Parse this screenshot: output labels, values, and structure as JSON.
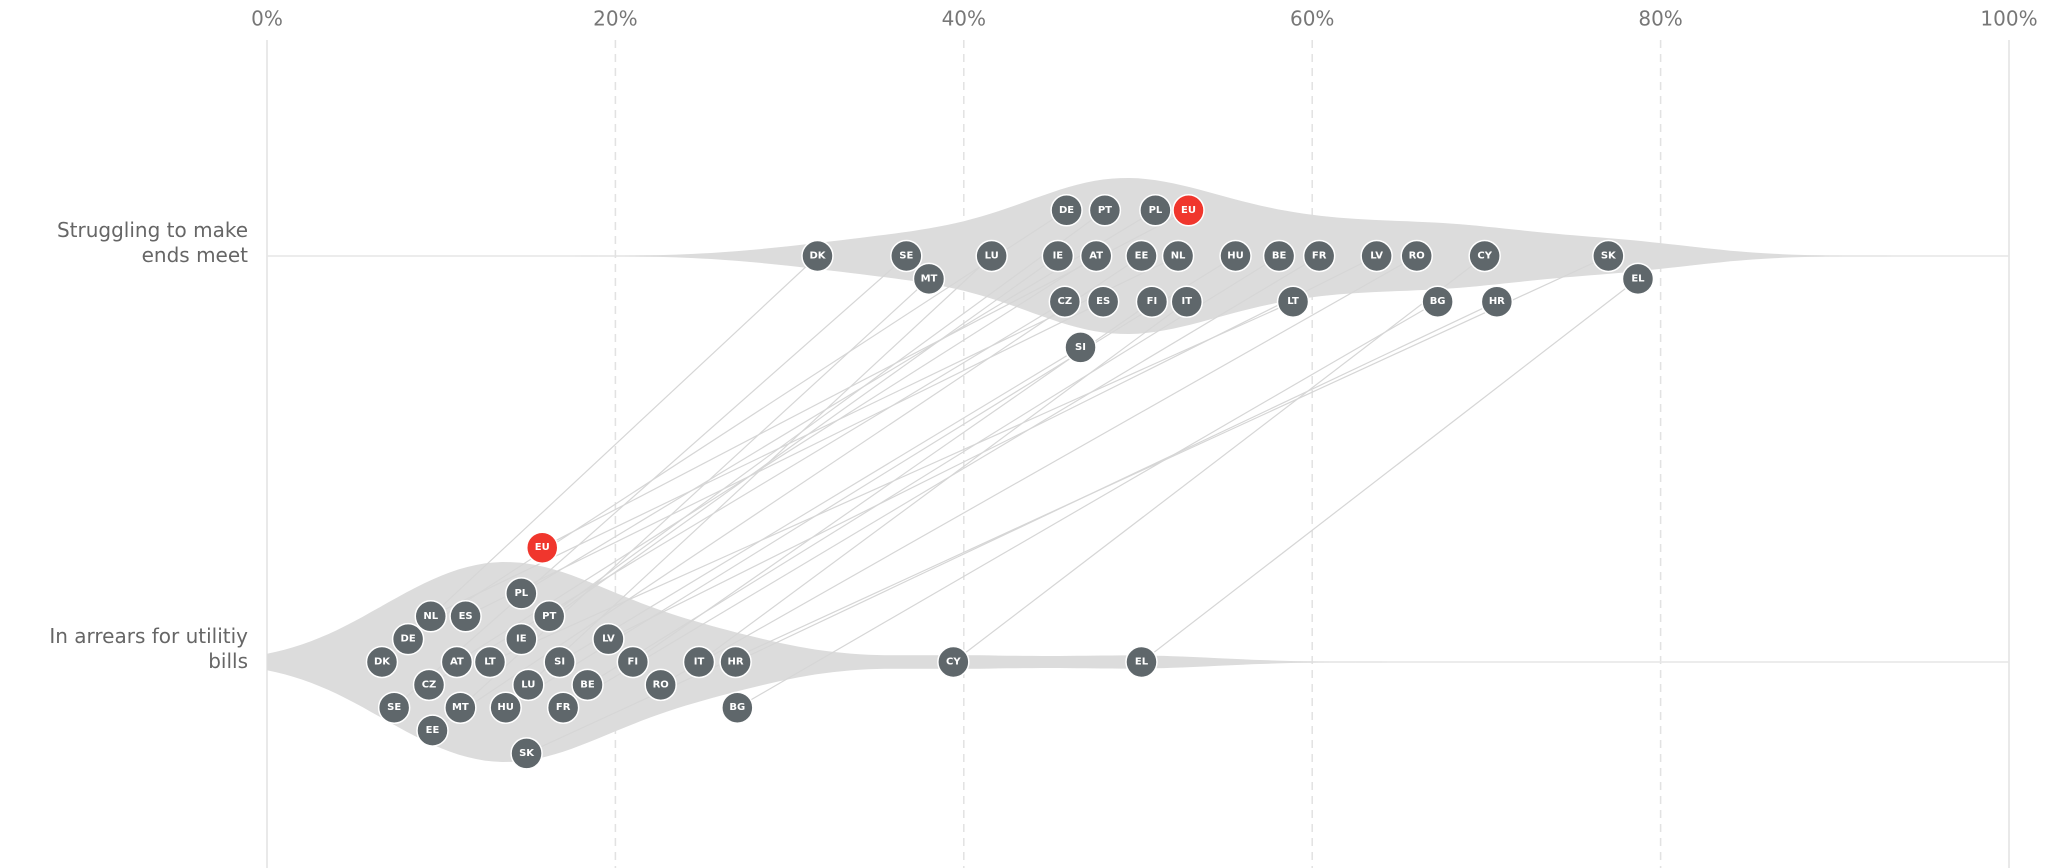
{
  "chart_data": {
    "type": "beeswarm",
    "countries": [
      "DK",
      "SE",
      "MT",
      "LU",
      "IE",
      "CZ",
      "DE",
      "SI",
      "AT",
      "ES",
      "PT",
      "EE",
      "FI",
      "PL",
      "NL",
      "IT",
      "EU",
      "HU",
      "BE",
      "LT",
      "FR",
      "LV",
      "RO",
      "BG",
      "CY",
      "HR",
      "SK",
      "EL"
    ],
    "series": [
      {
        "name": "Struggling to make ends meet",
        "values": [
          31.6,
          36.7,
          38.0,
          41.6,
          45.4,
          45.8,
          45.9,
          46.7,
          47.6,
          48.0,
          48.1,
          50.2,
          50.8,
          51.0,
          52.3,
          52.8,
          52.9,
          55.6,
          58.1,
          58.9,
          60.4,
          63.7,
          66.0,
          67.2,
          69.9,
          70.6,
          77.0,
          78.7
        ]
      },
      {
        "name": "In arrears for utilitiy bills",
        "values": [
          6.6,
          7.3,
          11.1,
          15.0,
          14.6,
          9.3,
          8.1,
          16.8,
          10.9,
          11.4,
          16.2,
          9.5,
          21.0,
          14.6,
          9.4,
          24.8,
          15.8,
          13.7,
          18.4,
          12.8,
          17.0,
          19.6,
          22.6,
          27.0,
          39.4,
          26.9,
          14.9,
          50.2
        ]
      }
    ],
    "color": "#5f676b",
    "highlight": "EU",
    "highlight_color": "#f0362d",
    "xlim": [
      0,
      100
    ],
    "xticks": [
      {
        "value": 0,
        "label": "0%"
      },
      {
        "value": 20,
        "label": "20%"
      },
      {
        "value": 40,
        "label": "40%"
      },
      {
        "value": 60,
        "label": "60%"
      },
      {
        "value": 80,
        "label": "80%"
      },
      {
        "value": 100,
        "label": "100%"
      }
    ],
    "grid": true
  }
}
